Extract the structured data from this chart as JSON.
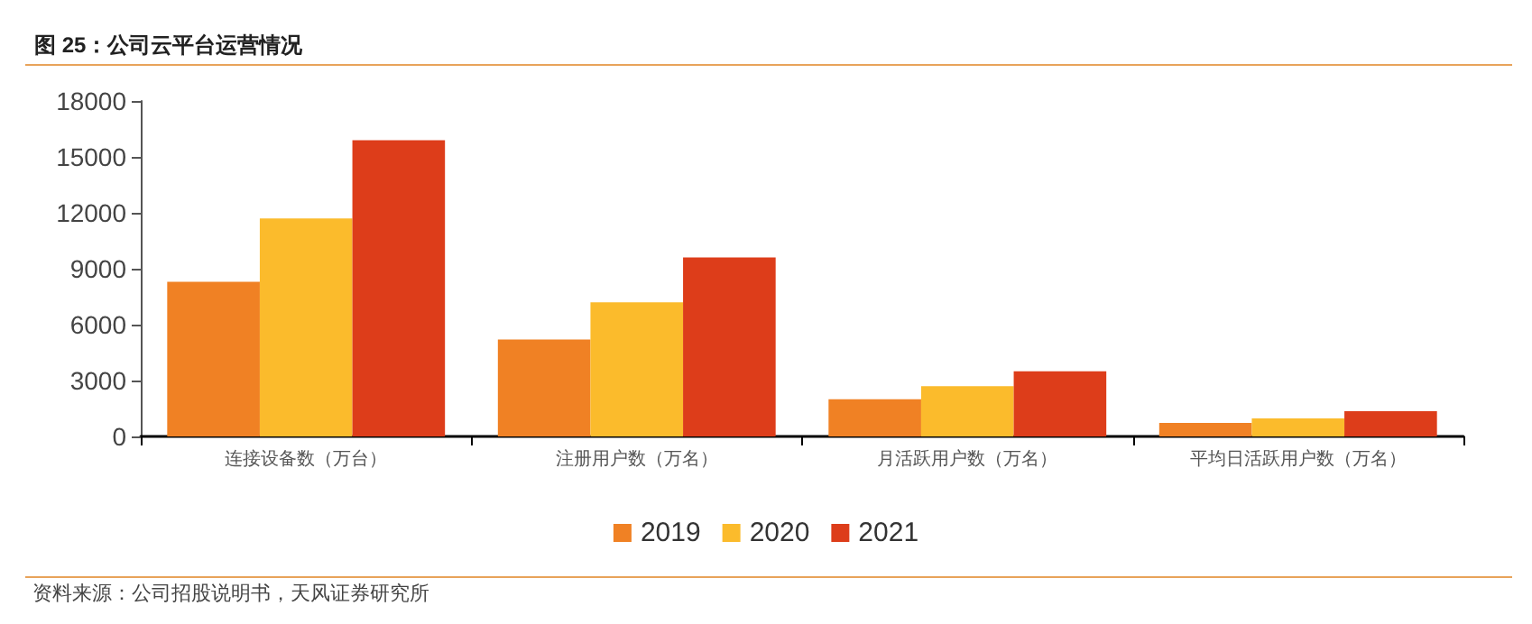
{
  "chart_data": {
    "type": "bar",
    "title": "图 25：公司云平台运营情况",
    "categories": [
      "连接设备数（万台）",
      "注册用户数（万名）",
      "月活跃用户数（万名）",
      "平均日活跃用户数（万名）"
    ],
    "series": [
      {
        "name": "2019",
        "color": "#f08124",
        "values": [
          8300,
          5200,
          2000,
          730
        ]
      },
      {
        "name": "2020",
        "color": "#fbbb2c",
        "values": [
          11700,
          7200,
          2700,
          970
        ]
      },
      {
        "name": "2021",
        "color": "#dd3d1a",
        "values": [
          15900,
          9600,
          3500,
          1360
        ]
      }
    ],
    "ylim": [
      0,
      18000
    ],
    "yticks": [
      0,
      3000,
      6000,
      9000,
      12000,
      15000,
      18000
    ],
    "grid": false,
    "legend": "bottom",
    "annotations": [
      "资料来源：公司招股说明书，天风证券研究所"
    ]
  }
}
